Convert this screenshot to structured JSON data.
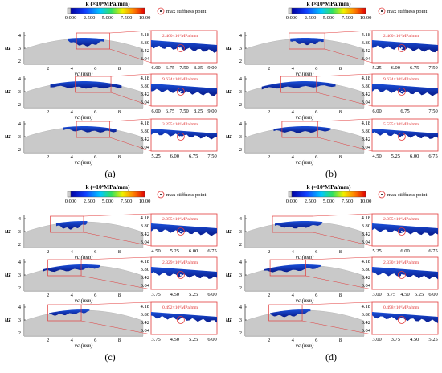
{
  "figure": {
    "colorbar_title": "k (×10⁶MPa/mm)",
    "colorbar_ticks": [
      "0.000",
      "2.500",
      "5.000",
      "7.500",
      "10.00"
    ],
    "legend_label": "max stiffness point",
    "y_axis_label": "uz",
    "x_axis_label": "vc (mm)",
    "y_ticks_main": [
      "4",
      "3",
      "2"
    ],
    "x_ticks_main": [
      "2",
      "4",
      "6",
      "8"
    ],
    "inset_y_ticks": [
      "4.18",
      "3.80",
      "3.42",
      "3.04"
    ],
    "colors": {
      "surface": "#c9c9c9",
      "stiffness_dark": "#0a1a9a",
      "stiffness_mid": "#1a4fd8",
      "highlight": "#e23b3b"
    }
  },
  "panels": [
    {
      "caption": "(a)",
      "rows": [
        {
          "annotation": "2.460×10⁶MPa/mm",
          "inset_x_ticks": [
            "6.00",
            "6.75",
            "7.50",
            "8.25",
            "9.00"
          ]
        },
        {
          "annotation": "9.634×10⁶MPa/mm",
          "inset_x_ticks": [
            "6.00",
            "6.75",
            "7.50",
            "8.25",
            "9.00"
          ]
        },
        {
          "annotation": "3.255×10⁶MPa/mm",
          "inset_x_ticks": [
            "5.25",
            "6.00",
            "6.75",
            "7.50"
          ]
        }
      ]
    },
    {
      "caption": "(b)",
      "rows": [
        {
          "annotation": "2.460×10⁶MPa/mm",
          "inset_x_ticks": [
            "5.25",
            "6.00",
            "6.75",
            "7.50"
          ]
        },
        {
          "annotation": "9.634×10⁶MPa/mm",
          "inset_x_ticks": [
            "6.00",
            "6.75",
            "7.50"
          ]
        },
        {
          "annotation": "5.555×10⁶MPa/mm",
          "inset_x_ticks": [
            "4.50",
            "5.25",
            "6.00",
            "6.75"
          ]
        }
      ]
    },
    {
      "caption": "(c)",
      "rows": [
        {
          "annotation": "2.055×10⁶MPa/mm",
          "inset_x_ticks": [
            "4.50",
            "5.25",
            "6.00",
            "6.75"
          ]
        },
        {
          "annotation": "2.329×10⁶MPa/mm",
          "inset_x_ticks": [
            "3.75",
            "4.50",
            "5.25",
            "6.00"
          ]
        },
        {
          "annotation": "0.492×10⁶MPa/mm",
          "inset_x_ticks": [
            "3.75",
            "4.50",
            "5.25",
            "6.00"
          ]
        }
      ]
    },
    {
      "caption": "(d)",
      "rows": [
        {
          "annotation": "2.055×10⁶MPa/mm",
          "inset_x_ticks": [
            "5.25",
            "6.00",
            "6.75"
          ]
        },
        {
          "annotation": "2.330×10⁶MPa/mm",
          "inset_x_ticks": [
            "3.00",
            "3.75",
            "4.50",
            "5.25",
            "6.00"
          ]
        },
        {
          "annotation": "0.498×10⁶MPa/mm",
          "inset_x_ticks": [
            "3.00",
            "3.75",
            "4.50",
            "5.25"
          ]
        }
      ]
    }
  ]
}
